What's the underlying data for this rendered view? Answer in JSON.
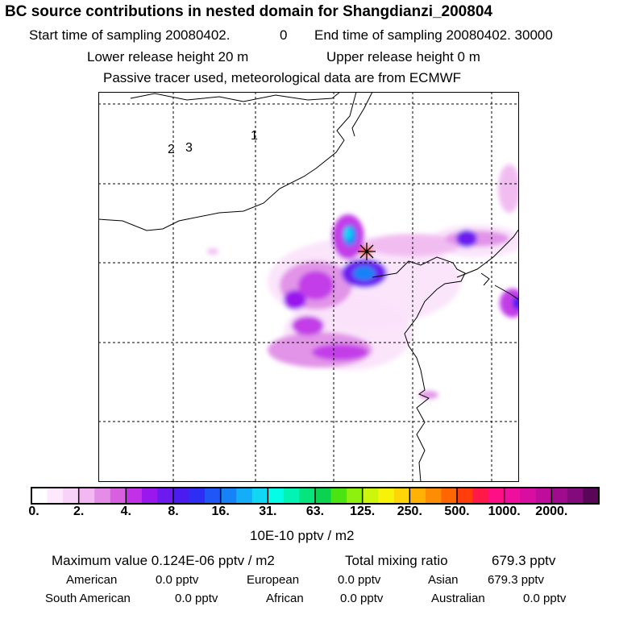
{
  "header": {
    "title": "BC  source contributions in nested domain for Shangdianzi_200804",
    "start_label": "Start time of sampling 20080402.",
    "start_hms": "0",
    "end_label": "End time of sampling 20080402. 30000",
    "lower_height": "Lower release height   20 m",
    "upper_height": "Upper release height    0 m",
    "tracer_note": "Passive tracer used, meteorological data are from ECMWF"
  },
  "map": {
    "station_markers": [
      "1",
      "2",
      "3"
    ],
    "receptor_symbol": "✶"
  },
  "colorbar": {
    "colors": [
      "#ffffff",
      "#fde8fd",
      "#f9d2f9",
      "#f3b8f3",
      "#e58de6",
      "#d85fe0",
      "#c231e8",
      "#9a17ee",
      "#6d1af0",
      "#4a1cf0",
      "#2d2df3",
      "#1f56f5",
      "#1582f7",
      "#13aef7",
      "#10d8f4",
      "#05fce6",
      "#03f3b4",
      "#06e47e",
      "#0bd24f",
      "#4ae412",
      "#8ef00e",
      "#ccf60c",
      "#f7f20a",
      "#fed508",
      "#ffb205",
      "#ff8c04",
      "#ff6603",
      "#ff3e0c",
      "#ff1848",
      "#ff0f86",
      "#ee0f9e",
      "#d80ea3",
      "#bf0d9b",
      "#9f0b8c",
      "#820a7b",
      "#5a0656"
    ],
    "tick_labels": [
      "0.",
      "2.",
      "4.",
      "8.",
      "16.",
      "31.",
      "63.",
      "125.",
      "250.",
      "500.",
      "1000.",
      "2000."
    ],
    "units": "10E-10 pptv / m2"
  },
  "stats": {
    "max_value": "Maximum value  0.124E-06 pptv / m2",
    "total_label": "Total mixing ratio",
    "total_value": "679.3 pptv",
    "regions": [
      {
        "name": "American",
        "value": "0.0 pptv"
      },
      {
        "name": "European",
        "value": "0.0 pptv"
      },
      {
        "name": "Asian",
        "value": "679.3 pptv"
      },
      {
        "name": "South American",
        "value": "0.0 pptv"
      },
      {
        "name": "African",
        "value": "0.0 pptv"
      },
      {
        "name": "Australian",
        "value": "0.0 pptv"
      }
    ]
  }
}
